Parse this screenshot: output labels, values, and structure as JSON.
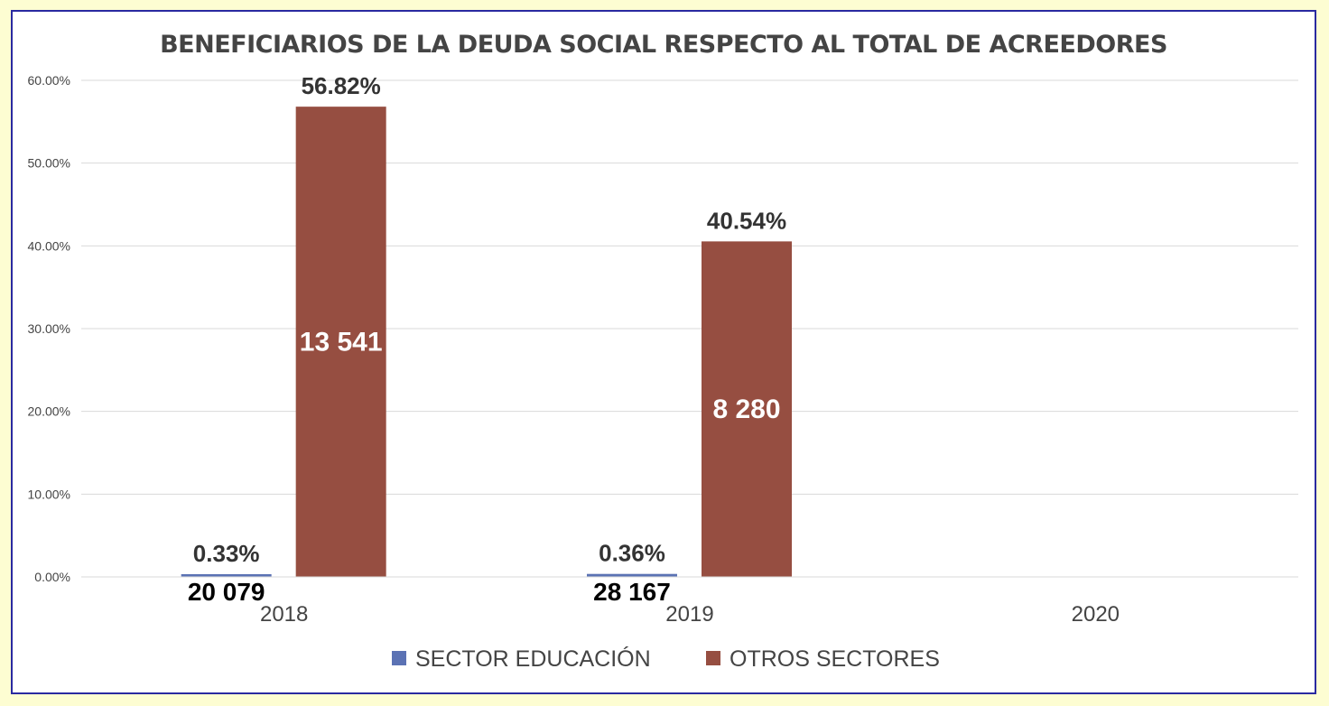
{
  "chart_data": {
    "type": "bar",
    "title": "BENEFICIARIOS DE LA DEUDA SOCIAL RESPECTO AL TOTAL DE ACREEDORES",
    "categories": [
      "2018",
      "2019",
      "2020"
    ],
    "ylim": [
      0,
      60
    ],
    "yticks": [
      "0.00%",
      "10.00%",
      "20.00%",
      "30.00%",
      "40.00%",
      "50.00%",
      "60.00%"
    ],
    "grid": true,
    "legend_position": "bottom",
    "series": [
      {
        "name": "SECTOR EDUCACIÓN",
        "color": "#5b72b4",
        "values": [
          0.33,
          0.36,
          null
        ],
        "labels": [
          "0.33%",
          "0.36%",
          null
        ],
        "counts": [
          "20 079",
          "28 167",
          null
        ]
      },
      {
        "name": "OTROS SECTORES",
        "color": "#964e41",
        "values": [
          56.82,
          40.54,
          null
        ],
        "labels": [
          "56.82%",
          "40.54%",
          null
        ],
        "counts": [
          "13 541",
          "8 280",
          null
        ]
      }
    ]
  }
}
